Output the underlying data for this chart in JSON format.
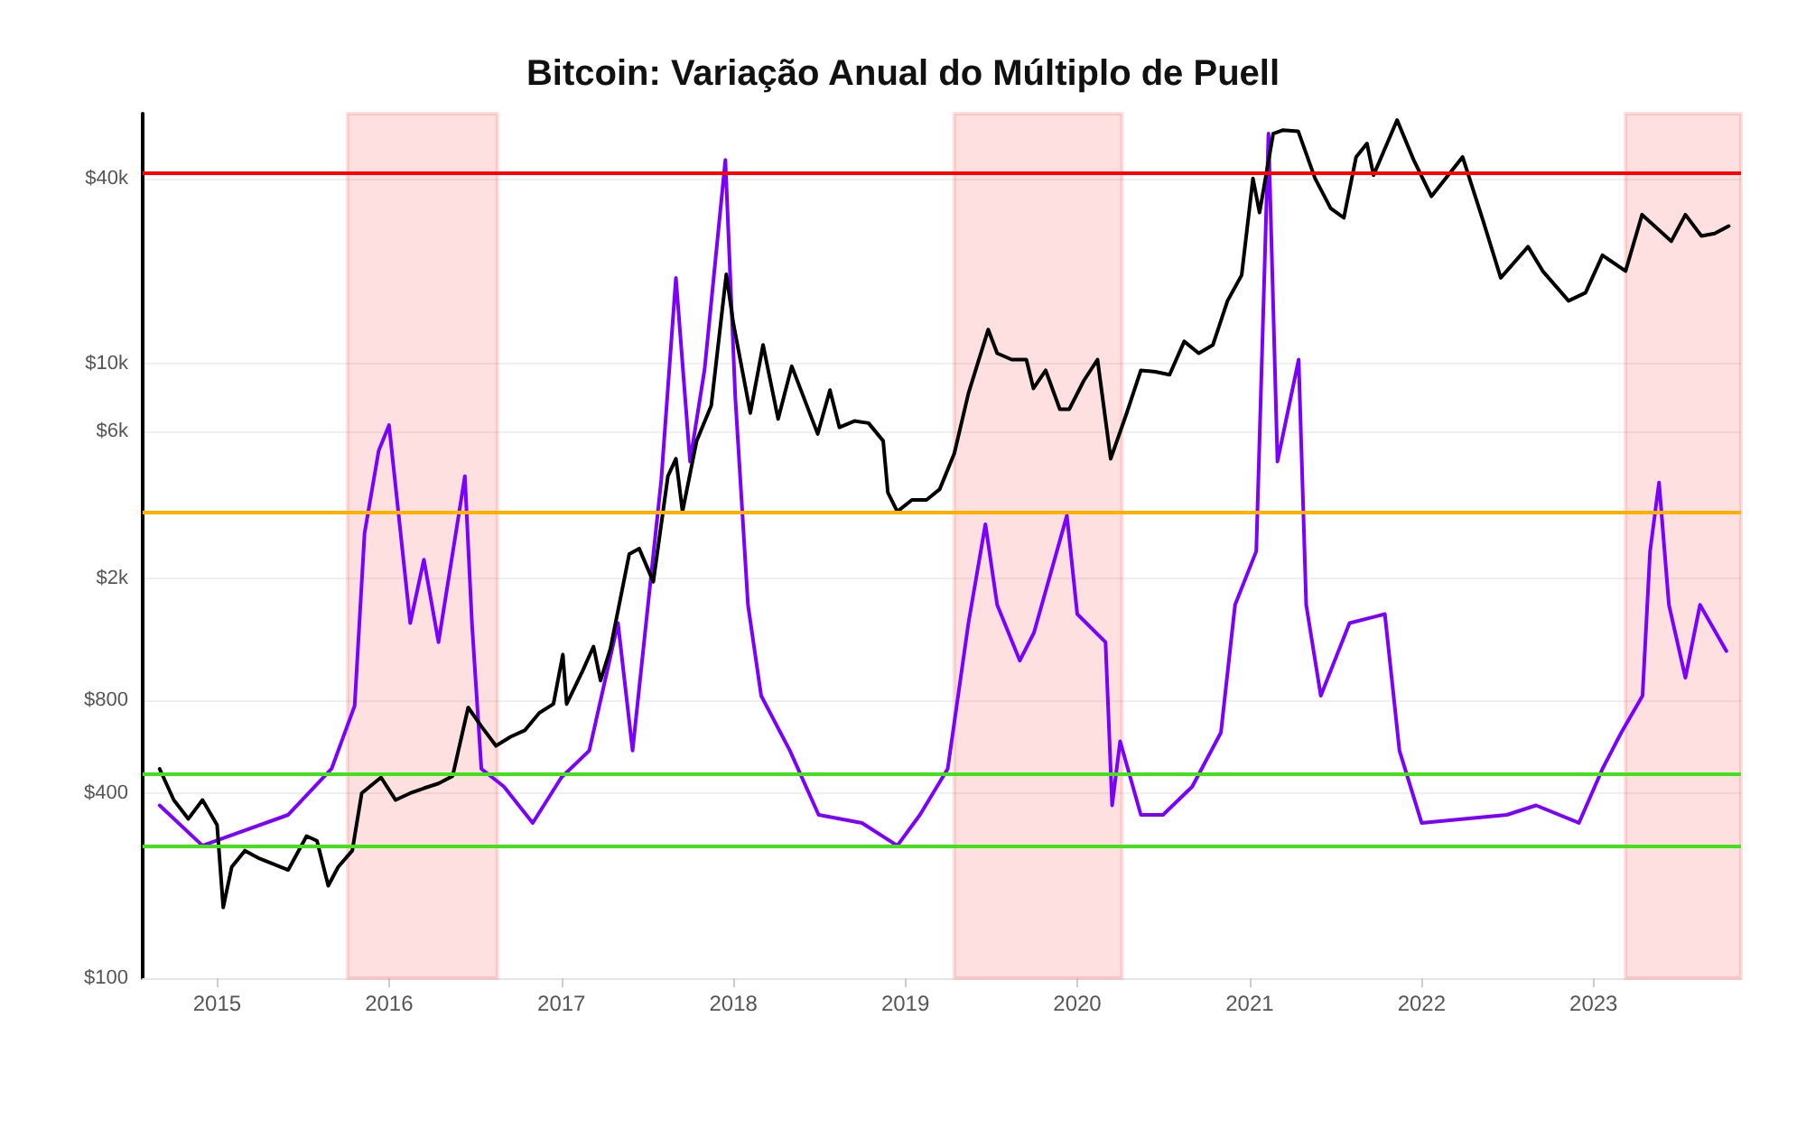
{
  "chart_data": {
    "type": "line",
    "title": "Bitcoin: Variação Anual do Múltiplo de Puell",
    "log": "y",
    "marker": "none",
    "grid": "y",
    "xlim": [
      "2014-07-27",
      "2023-11-10"
    ],
    "ylim": [
      100,
      65000
    ],
    "xticks": [
      {
        "value": "2015-01-01",
        "label": "2015"
      },
      {
        "value": "2016-01-01",
        "label": "2016"
      },
      {
        "value": "2017-01-01",
        "label": "2017"
      },
      {
        "value": "2018-01-01",
        "label": "2018"
      },
      {
        "value": "2019-01-01",
        "label": "2019"
      },
      {
        "value": "2020-01-01",
        "label": "2020"
      },
      {
        "value": "2021-01-01",
        "label": "2021"
      },
      {
        "value": "2022-01-01",
        "label": "2022"
      },
      {
        "value": "2023-01-01",
        "label": "2023"
      }
    ],
    "yticks": [
      {
        "value": 100,
        "label": "$100"
      },
      {
        "value": 400,
        "label": "$400"
      },
      {
        "value": 800,
        "label": "$800"
      },
      {
        "value": 2000,
        "label": "$2k"
      },
      {
        "value": 6000,
        "label": "$6k"
      },
      {
        "value": 10000,
        "label": "$10k"
      },
      {
        "value": 40000,
        "label": "$40k"
      }
    ],
    "series": [
      {
        "color": "#7a00ff",
        "x": [
          "2014-09-01",
          "2014-12-01",
          "2015-06-01",
          "2015-09-01",
          "2015-10-20",
          "2015-11-10",
          "2015-12-10",
          "2016-01-01",
          "2016-02-15",
          "2016-03-15",
          "2016-04-15",
          "2016-06-10",
          "2016-06-25",
          "2016-07-15",
          "2016-09-01",
          "2016-11-01",
          "2017-01-01",
          "2017-03-01",
          "2017-05-01",
          "2017-06-01",
          "2017-08-01",
          "2017-09-01",
          "2017-10-01",
          "2017-11-01",
          "2017-12-15",
          "2018-01-05",
          "2018-02-01",
          "2018-03-01",
          "2018-05-01",
          "2018-07-01",
          "2018-10-01",
          "2018-12-15",
          "2019-02-01",
          "2019-04-01",
          "2019-05-15",
          "2019-06-20",
          "2019-07-15",
          "2019-09-01",
          "2019-10-01",
          "2019-12-10",
          "2020-01-01",
          "2020-03-01",
          "2020-03-15",
          "2020-04-01",
          "2020-05-15",
          "2020-07-01",
          "2020-09-01",
          "2020-11-01",
          "2020-12-01",
          "2021-01-15",
          "2021-02-10",
          "2021-03-01",
          "2021-04-15",
          "2021-05-01",
          "2021-06-01",
          "2021-08-01",
          "2021-10-15",
          "2021-11-15",
          "2022-01-01",
          "2022-04-01",
          "2022-07-01",
          "2022-09-01",
          "2022-12-01",
          "2023-01-20",
          "2023-03-01",
          "2023-04-15",
          "2023-05-01",
          "2023-05-20",
          "2023-06-10",
          "2023-07-15",
          "2023-08-15",
          "2023-10-10"
        ],
        "values": [
          365,
          270,
          340,
          480,
          770,
          2800,
          5200,
          6300,
          1430,
          2300,
          1240,
          4300,
          1430,
          480,
          420,
          320,
          450,
          550,
          1430,
          550,
          4200,
          19000,
          4800,
          9600,
          46000,
          7800,
          1640,
          830,
          550,
          340,
          320,
          270,
          340,
          480,
          1430,
          3000,
          1640,
          1080,
          1330,
          3200,
          1530,
          1240,
          365,
          590,
          340,
          340,
          420,
          630,
          1640,
          2450,
          56000,
          4800,
          10300,
          1640,
          830,
          1430,
          1530,
          550,
          320,
          330,
          340,
          365,
          320,
          480,
          630,
          830,
          2450,
          4100,
          1640,
          950,
          1640,
          1160
        ]
      },
      {
        "color": "#000000",
        "x": [
          "2014-09-01",
          "2014-10-01",
          "2014-11-01",
          "2014-12-01",
          "2015-01-01",
          "2015-01-14",
          "2015-02-01",
          "2015-03-01",
          "2015-04-01",
          "2015-05-01",
          "2015-06-01",
          "2015-07-10",
          "2015-08-01",
          "2015-08-25",
          "2015-09-15",
          "2015-10-15",
          "2015-11-04",
          "2015-12-15",
          "2016-01-15",
          "2016-02-15",
          "2016-03-15",
          "2016-04-15",
          "2016-05-15",
          "2016-06-17",
          "2016-07-15",
          "2016-08-15",
          "2016-09-15",
          "2016-10-15",
          "2016-11-15",
          "2016-12-15",
          "2017-01-04",
          "2017-01-12",
          "2017-02-15",
          "2017-03-10",
          "2017-03-25",
          "2017-04-15",
          "2017-05-25",
          "2017-06-15",
          "2017-07-15",
          "2017-08-15",
          "2017-09-01",
          "2017-09-15",
          "2017-10-15",
          "2017-11-15",
          "2017-12-17",
          "2018-01-01",
          "2018-02-06",
          "2018-03-05",
          "2018-04-06",
          "2018-05-05",
          "2018-06-29",
          "2018-07-25",
          "2018-08-14",
          "2018-09-15",
          "2018-10-15",
          "2018-11-15",
          "2018-11-25",
          "2018-12-15",
          "2019-01-15",
          "2019-02-15",
          "2019-03-15",
          "2019-04-15",
          "2019-05-15",
          "2019-06-26",
          "2019-07-15",
          "2019-08-15",
          "2019-09-15",
          "2019-09-30",
          "2019-10-26",
          "2019-11-25",
          "2019-12-15",
          "2020-01-15",
          "2020-02-13",
          "2020-03-12",
          "2020-04-15",
          "2020-05-15",
          "2020-06-15",
          "2020-07-15",
          "2020-08-15",
          "2020-09-15",
          "2020-10-15",
          "2020-11-15",
          "2020-12-15",
          "2021-01-08",
          "2021-01-22",
          "2021-02-20",
          "2021-03-13",
          "2021-04-14",
          "2021-05-20",
          "2021-06-22",
          "2021-07-20",
          "2021-08-15",
          "2021-09-07",
          "2021-09-21",
          "2021-11-10",
          "2021-12-15",
          "2022-01-22",
          "2022-03-29",
          "2022-05-12",
          "2022-06-18",
          "2022-08-15",
          "2022-09-15",
          "2022-11-09",
          "2022-12-15",
          "2023-01-20",
          "2023-03-10",
          "2023-04-14",
          "2023-06-15",
          "2023-07-15",
          "2023-08-18",
          "2023-09-15",
          "2023-10-15"
        ],
        "values": [
          480,
          380,
          330,
          380,
          315,
          170,
          230,
          260,
          245,
          235,
          225,
          290,
          280,
          200,
          230,
          260,
          400,
          450,
          380,
          400,
          415,
          430,
          455,
          760,
          660,
          570,
          610,
          640,
          730,
          780,
          1130,
          780,
          1000,
          1200,
          930,
          1180,
          2400,
          2500,
          1950,
          4300,
          4900,
          3300,
          5600,
          7300,
          19500,
          13500,
          6900,
          11500,
          6600,
          9800,
          5900,
          8200,
          6200,
          6500,
          6400,
          5600,
          3800,
          3300,
          3600,
          3600,
          3900,
          5100,
          8000,
          12900,
          10800,
          10300,
          10300,
          8300,
          9500,
          7100,
          7100,
          8800,
          10300,
          4900,
          6900,
          9500,
          9400,
          9200,
          11800,
          10800,
          11500,
          16000,
          19400,
          40000,
          31000,
          56000,
          57500,
          57000,
          40000,
          32000,
          29800,
          47000,
          52000,
          41000,
          62000,
          46000,
          35000,
          47000,
          29000,
          19000,
          24000,
          20000,
          16000,
          17000,
          22500,
          20000,
          30500,
          25000,
          30500,
          26000,
          26500,
          28000
        ]
      }
    ],
    "ref_lines": [
      {
        "axis": "y",
        "value": 42000,
        "color": "#ff0000"
      },
      {
        "axis": "y",
        "value": 3300,
        "color": "#ffb000"
      },
      {
        "axis": "y",
        "value": 460,
        "color": "#44e01c"
      },
      {
        "axis": "y",
        "value": 270,
        "color": "#44e01c"
      }
    ],
    "bands": [
      {
        "axis": "x",
        "from": "2015-10-05",
        "to": "2016-08-18",
        "color": "#ff0000"
      },
      {
        "axis": "x",
        "from": "2019-04-15",
        "to": "2020-04-05",
        "color": "#ff0000"
      },
      {
        "axis": "x",
        "from": "2023-03-10",
        "to": "2023-11-10",
        "color": "#ff0000"
      }
    ]
  }
}
